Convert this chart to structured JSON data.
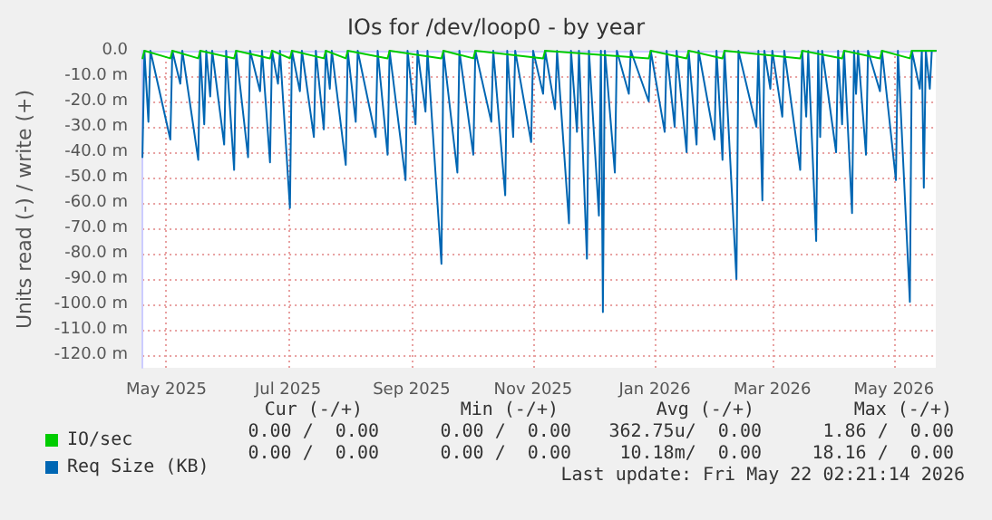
{
  "chart_data": {
    "type": "line",
    "title": "IOs for /dev/loop0 - by year",
    "ylabel": "Units read (-) / write (+)",
    "xlim": [
      "2025-04-19",
      "2026-05-22"
    ],
    "xticks": [
      {
        "value": "2025-05-01",
        "label": "May 2025"
      },
      {
        "value": "2025-07-01",
        "label": "Jul 2025"
      },
      {
        "value": "2025-09-01",
        "label": "Sep 2025"
      },
      {
        "value": "2025-11-01",
        "label": "Nov 2025"
      },
      {
        "value": "2026-01-01",
        "label": "Jan 2026"
      },
      {
        "value": "2026-03-01",
        "label": "Mar 2026"
      },
      {
        "value": "2026-05-01",
        "label": "May 2026"
      }
    ],
    "ylim": [
      -125,
      0
    ],
    "yticks": [
      {
        "value": 0,
        "label": "0.0"
      },
      {
        "value": -10,
        "label": "-10.0 m"
      },
      {
        "value": -20,
        "label": "-20.0 m"
      },
      {
        "value": -30,
        "label": "-30.0 m"
      },
      {
        "value": -40,
        "label": "-40.0 m"
      },
      {
        "value": -50,
        "label": "-50.0 m"
      },
      {
        "value": -60,
        "label": "-60.0 m"
      },
      {
        "value": -70,
        "label": "-70.0 m"
      },
      {
        "value": -80,
        "label": "-80.0 m"
      },
      {
        "value": -90,
        "label": "-90.0 m"
      },
      {
        "value": -100,
        "label": "-100.0 m"
      },
      {
        "value": -110,
        "label": "-110.0 m"
      },
      {
        "value": -120,
        "label": "-120.0 m"
      }
    ],
    "grid": true,
    "legend": "bottom",
    "marker": "none",
    "line_style": "solid",
    "series": [
      {
        "name": "Req Size (KB)",
        "color": "#0066b3",
        "x": [
          "2025-04-19",
          "2025-04-20",
          "2025-04-22",
          "2025-04-23",
          "2025-05-03",
          "2025-05-04",
          "2025-05-08",
          "2025-05-09",
          "2025-05-17",
          "2025-05-18",
          "2025-05-20",
          "2025-05-21",
          "2025-05-23",
          "2025-05-24",
          "2025-05-30",
          "2025-05-31",
          "2025-06-04",
          "2025-06-05",
          "2025-06-11",
          "2025-06-12",
          "2025-06-17",
          "2025-06-18",
          "2025-06-22",
          "2025-06-23",
          "2025-06-26",
          "2025-06-27",
          "2025-07-02",
          "2025-07-03",
          "2025-07-07",
          "2025-07-08",
          "2025-07-14",
          "2025-07-15",
          "2025-07-19",
          "2025-07-20",
          "2025-07-22",
          "2025-07-23",
          "2025-07-30",
          "2025-07-31",
          "2025-08-04",
          "2025-08-05",
          "2025-08-14",
          "2025-08-15",
          "2025-08-20",
          "2025-08-21",
          "2025-08-29",
          "2025-08-30",
          "2025-09-03",
          "2025-09-04",
          "2025-09-08",
          "2025-09-09",
          "2025-09-16",
          "2025-09-17",
          "2025-09-24",
          "2025-09-25",
          "2025-10-02",
          "2025-10-03",
          "2025-10-11",
          "2025-10-12",
          "2025-10-18",
          "2025-10-19",
          "2025-10-22",
          "2025-10-23",
          "2025-10-31",
          "2025-11-01",
          "2025-11-06",
          "2025-11-07",
          "2025-11-12",
          "2025-11-13",
          "2025-11-19",
          "2025-11-20",
          "2025-11-23",
          "2025-11-24",
          "2025-11-28",
          "2025-11-29",
          "2025-12-04",
          "2025-12-05",
          "2025-12-06",
          "2025-12-07",
          "2025-12-12",
          "2025-12-13",
          "2025-12-19",
          "2025-12-20",
          "2025-12-29",
          "2025-12-30",
          "2026-01-06",
          "2026-01-07",
          "2026-01-11",
          "2026-01-12",
          "2026-01-17",
          "2026-01-18",
          "2026-01-22",
          "2026-01-23",
          "2026-01-31",
          "2026-02-01",
          "2026-02-04",
          "2026-02-05",
          "2026-02-11",
          "2026-02-12",
          "2026-02-21",
          "2026-02-22",
          "2026-02-24",
          "2026-02-25",
          "2026-02-28",
          "2026-03-01",
          "2026-03-06",
          "2026-03-07",
          "2026-03-15",
          "2026-03-16",
          "2026-03-18",
          "2026-03-19",
          "2026-03-23",
          "2026-03-24",
          "2026-03-25",
          "2026-03-26",
          "2026-04-02",
          "2026-04-03",
          "2026-04-05",
          "2026-04-06",
          "2026-04-10",
          "2026-04-11",
          "2026-04-12",
          "2026-04-13",
          "2026-04-17",
          "2026-04-18",
          "2026-04-24",
          "2026-04-25",
          "2026-05-02",
          "2026-05-03",
          "2026-05-09",
          "2026-05-10",
          "2026-05-14",
          "2026-05-15",
          "2026-05-16",
          "2026-05-17",
          "2026-05-19",
          "2026-05-20",
          "2026-05-22"
        ],
        "values": [
          -42,
          0,
          -28,
          0,
          -35,
          0,
          -13,
          0,
          -43,
          0,
          -29,
          0,
          -18,
          0,
          -37,
          0,
          -47,
          0,
          -42,
          0,
          -16,
          0,
          -44,
          0,
          -13,
          0,
          -62,
          0,
          -16,
          0,
          -34,
          0,
          -31,
          0,
          -15,
          0,
          -45,
          0,
          -28,
          0,
          -34,
          0,
          -41,
          0,
          -51,
          0,
          -29,
          0,
          -24,
          0,
          -84,
          0,
          -48,
          0,
          -41,
          0,
          -28,
          0,
          -57,
          0,
          -34,
          0,
          -36,
          0,
          -17,
          0,
          -23,
          0,
          -68,
          0,
          -32,
          0,
          -82,
          0,
          -65,
          0,
          -103,
          0,
          -48,
          0,
          -17,
          0,
          -20,
          0,
          -32,
          0,
          -30,
          0,
          -40,
          0,
          -37,
          0,
          -35,
          0,
          -43,
          0,
          -90,
          0,
          -30,
          0,
          -59,
          0,
          -15,
          0,
          -26,
          0,
          -47,
          0,
          -26,
          0,
          -75,
          0,
          -34,
          0,
          -40,
          0,
          -29,
          0,
          -64,
          0,
          -17,
          0,
          -41,
          0,
          -16,
          0,
          -51,
          0,
          -99,
          0,
          -15,
          0,
          -54,
          0,
          -15,
          0,
          0
        ]
      },
      {
        "name": "IO/sec",
        "color": "#00cc00",
        "x": [
          "2025-04-19",
          "2025-04-20",
          "2025-05-03",
          "2025-05-04",
          "2025-05-17",
          "2025-05-18",
          "2025-06-04",
          "2025-06-05",
          "2025-06-22",
          "2025-06-23",
          "2025-07-02",
          "2025-07-03",
          "2025-07-19",
          "2025-07-20",
          "2025-07-30",
          "2025-07-31",
          "2025-08-20",
          "2025-08-21",
          "2025-09-16",
          "2025-09-17",
          "2025-10-02",
          "2025-10-03",
          "2025-11-06",
          "2025-11-07",
          "2025-12-29",
          "2025-12-30",
          "2026-01-17",
          "2026-01-18",
          "2026-02-04",
          "2026-02-05",
          "2026-03-15",
          "2026-03-16",
          "2026-04-05",
          "2026-04-06",
          "2026-04-24",
          "2026-04-25",
          "2026-05-09",
          "2026-05-10",
          "2026-05-22"
        ],
        "values": [
          -3,
          0,
          -3,
          0,
          -3,
          0,
          -3,
          0,
          -3,
          0,
          -3,
          0,
          -3,
          0,
          -3,
          0,
          -3,
          0,
          -3,
          0,
          -3,
          0,
          -3,
          0,
          -3,
          0,
          -3,
          0,
          -3,
          0,
          -3,
          0,
          -3,
          0,
          -3,
          0,
          -3,
          0,
          0
        ]
      }
    ],
    "annotations": [
      "Cur (-/+)",
      "Min (-/+)",
      "Avg (-/+)",
      "Max (-/+)",
      "0.00 /  0.00",
      "0.00 /  0.00",
      "362.75u/  0.00",
      "1.86 /  0.00",
      "0.00 /  0.00",
      "0.00 /  0.00",
      "10.18m/  0.00",
      "18.16 /  0.00",
      "Last update: Fri May 22 02:21:14 2026"
    ]
  }
}
